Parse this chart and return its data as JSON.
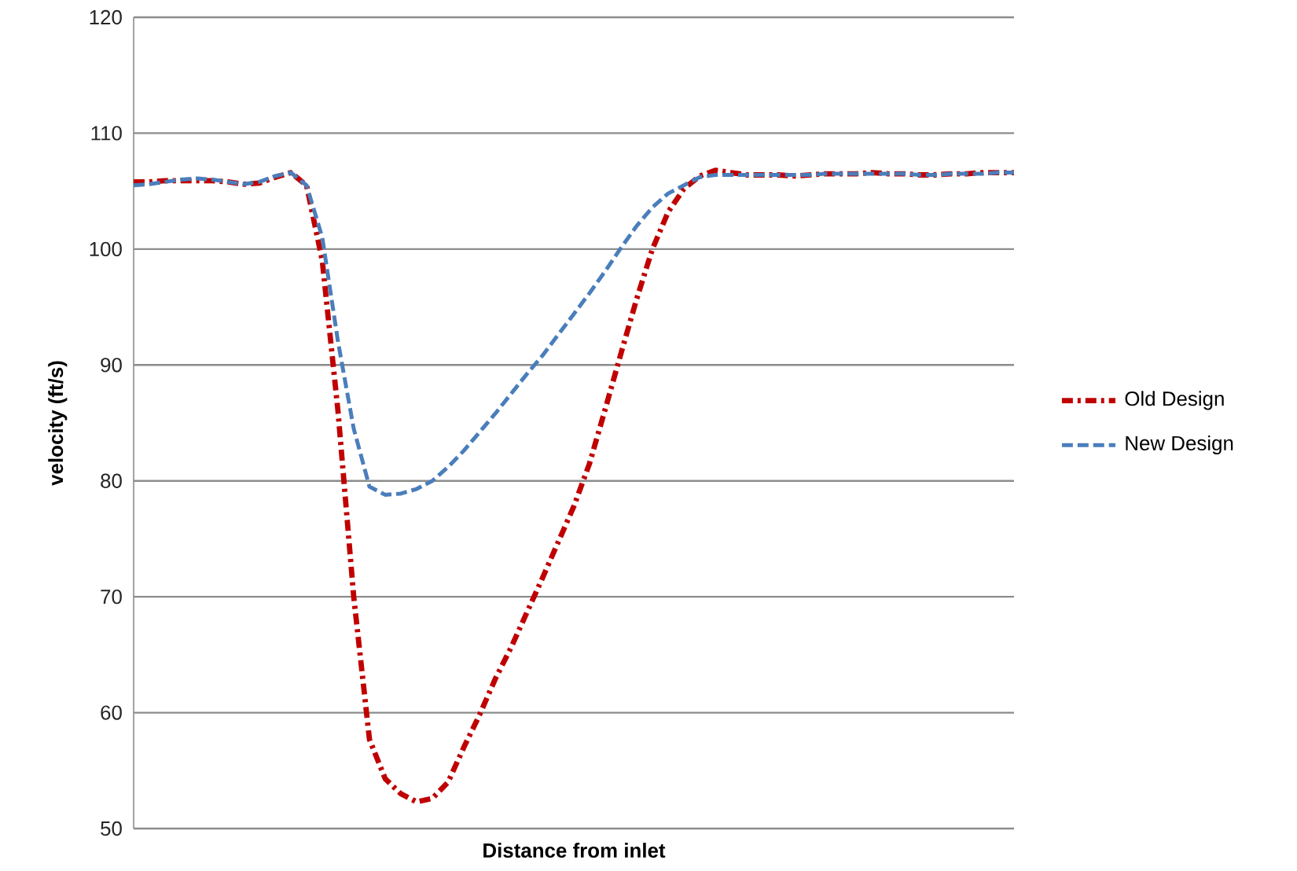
{
  "chart_data": {
    "type": "line",
    "xlabel": "Distance from inlet",
    "ylabel": "velocity (ft/s)",
    "categories": [
      null,
      null,
      null,
      null,
      null,
      null,
      null,
      null,
      null,
      null,
      null,
      null,
      null,
      null,
      null,
      null,
      null,
      null,
      null,
      null,
      null,
      null,
      null,
      null,
      null,
      null,
      null,
      null,
      null,
      null,
      null,
      null,
      null,
      null,
      null,
      null,
      null,
      null,
      null,
      null,
      null,
      null,
      null,
      null,
      null,
      null,
      null,
      null,
      null,
      null,
      null,
      null,
      null,
      null,
      null,
      null,
      null
    ],
    "series": [
      {
        "name": "Old Design",
        "color": "#c00000",
        "line_style": "dashdot",
        "values": [
          105.8,
          105.8,
          105.9,
          105.9,
          105.9,
          105.9,
          105.8,
          105.6,
          105.7,
          106.2,
          106.6,
          105.5,
          99,
          86,
          70,
          57.7,
          54.3,
          53,
          52.3,
          52.6,
          54,
          57,
          59.8,
          62.9,
          65.6,
          68.6,
          71.6,
          74.7,
          77.8,
          81.5,
          86.2,
          91,
          95.7,
          100,
          103.2,
          105.2,
          106.3,
          106.8,
          106.6,
          106.4,
          106.4,
          106.4,
          106.3,
          106.4,
          106.5,
          106.5,
          106.5,
          106.6,
          106.5,
          106.5,
          106.4,
          106.4,
          106.5,
          106.5,
          106.6,
          106.6,
          106.6
        ]
      },
      {
        "name": "New Design",
        "color": "#4a7ebb",
        "line_style": "dashed",
        "values": [
          105.5,
          105.6,
          105.8,
          106,
          106.1,
          106,
          105.8,
          105.6,
          105.8,
          106.3,
          106.6,
          105.5,
          101,
          92,
          84.5,
          79.5,
          78.8,
          78.9,
          79.3,
          80,
          81.2,
          82.6,
          84.2,
          85.8,
          87.5,
          89.2,
          90.8,
          92.6,
          94.4,
          96.2,
          98.1,
          100.1,
          102,
          103.6,
          104.8,
          105.5,
          106.2,
          106.4,
          106.4,
          106.4,
          106.4,
          106.4,
          106.4,
          106.4,
          106.5,
          106.5,
          106.5,
          106.5,
          106.5,
          106.5,
          106.4,
          106.4,
          106.5,
          106.5,
          106.5,
          106.6,
          106.6
        ]
      }
    ],
    "ylim": [
      50,
      120
    ],
    "yticks": [
      50,
      60,
      70,
      80,
      90,
      100,
      110,
      120
    ],
    "grid": "y",
    "legend": "right"
  }
}
